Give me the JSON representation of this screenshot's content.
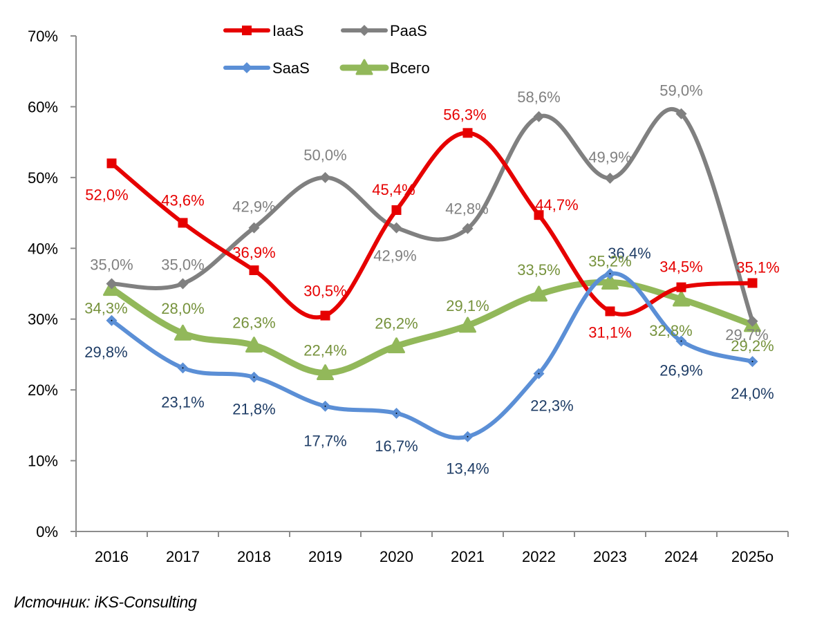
{
  "chart_data": {
    "type": "line",
    "title": "",
    "xlabel": "",
    "ylabel": "",
    "categories": [
      "2016",
      "2017",
      "2018",
      "2019",
      "2020",
      "2021",
      "2022",
      "2023",
      "2024",
      "2025о"
    ],
    "ylim": [
      0,
      70
    ],
    "yticks": [
      0,
      10,
      20,
      30,
      40,
      50,
      60,
      70
    ],
    "ytick_labels": [
      "0%",
      "10%",
      "20%",
      "30%",
      "40%",
      "50%",
      "60%",
      "70%"
    ],
    "grid": false,
    "legend_position": "top",
    "smooth": true,
    "series": [
      {
        "name": "IaaS",
        "color": "#e60000",
        "label_color": "#e60000",
        "marker": "square",
        "values": [
          52.0,
          43.6,
          36.9,
          30.5,
          45.4,
          56.3,
          44.7,
          31.1,
          34.5,
          35.1
        ],
        "labels": [
          "52,0%",
          "43,6%",
          "36,9%",
          "30,5%",
          "45,4%",
          "56,3%",
          "44,7%",
          "31,1%",
          "34,5%",
          "35,1%"
        ]
      },
      {
        "name": "PaaS",
        "color": "#808080",
        "label_color": "#808080",
        "marker": "diamond",
        "values": [
          35.0,
          35.0,
          42.9,
          50.0,
          42.9,
          42.8,
          58.6,
          49.9,
          59.0,
          29.7
        ],
        "labels": [
          "35,0%",
          "35,0%",
          "42,9%",
          "50,0%",
          "42,9%",
          "42,8%",
          "58,6%",
          "49,9%",
          "59,0%",
          "29,7%"
        ]
      },
      {
        "name": "SaaS",
        "color": "#5b8fd6",
        "label_color": "#1f3d66",
        "marker": "diamond",
        "values": [
          29.8,
          23.1,
          21.8,
          17.7,
          16.7,
          13.4,
          22.3,
          36.4,
          26.9,
          24.0
        ],
        "labels": [
          "29,8%",
          "23,1%",
          "21,8%",
          "17,7%",
          "16,7%",
          "13,4%",
          "22,3%",
          "36,4%",
          "26,9%",
          "24,0%"
        ]
      },
      {
        "name": "Всего",
        "color": "#92b85a",
        "label_color": "#76923c",
        "marker": "triangle",
        "values": [
          34.3,
          28.0,
          26.3,
          22.4,
          26.2,
          29.1,
          33.5,
          35.2,
          32.8,
          29.2
        ],
        "labels": [
          "34,3%",
          "28,0%",
          "26,3%",
          "22,4%",
          "26,2%",
          "29,1%",
          "33,5%",
          "35,2%",
          "32,8%",
          "29,2%"
        ]
      }
    ]
  },
  "source_note": "Источник: iKS-Consulting"
}
